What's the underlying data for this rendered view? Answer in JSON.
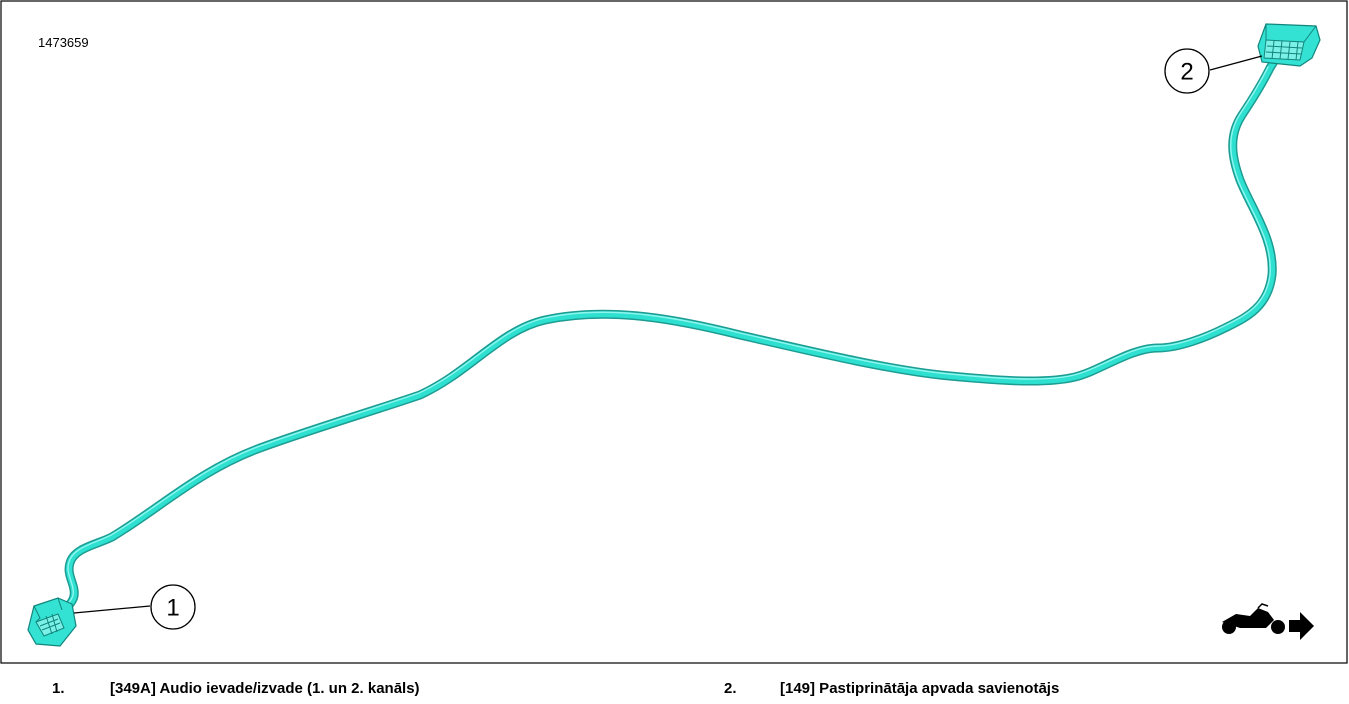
{
  "figure": {
    "id_label": "1473659",
    "colors": {
      "cable": "#2ee0d0",
      "cable_shadow": "#1c9c92",
      "frame": "#000000"
    },
    "icons": [
      "motorcycle-forward-icon"
    ]
  },
  "callouts": [
    {
      "number": "1"
    },
    {
      "number": "2"
    }
  ],
  "legend": [
    {
      "number": "1.",
      "text": "[349A] Audio ievade/izvade (1. un 2. kanāls)"
    },
    {
      "number": "2.",
      "text": "[149] Pastiprinātāja apvada savienotājs"
    }
  ]
}
